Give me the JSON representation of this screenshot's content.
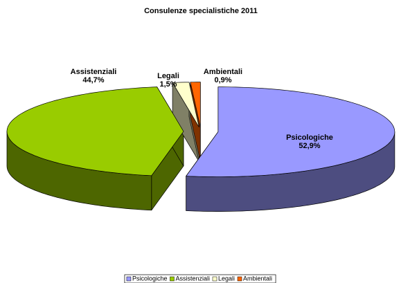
{
  "chart_data": {
    "type": "pie3d",
    "title": "Consulenze specialistiche 2011",
    "categories": [
      "Psicologiche",
      "Assistenziali",
      "Legali",
      "Ambientali"
    ],
    "values": [
      52.9,
      44.7,
      1.5,
      0.9
    ],
    "value_labels": [
      "52,9%",
      "44,7%",
      "1,5%",
      "0,9%"
    ],
    "colors": [
      "#9999ff",
      "#99cc00",
      "#ffffcc",
      "#ff6600"
    ],
    "legend": "bottom"
  }
}
